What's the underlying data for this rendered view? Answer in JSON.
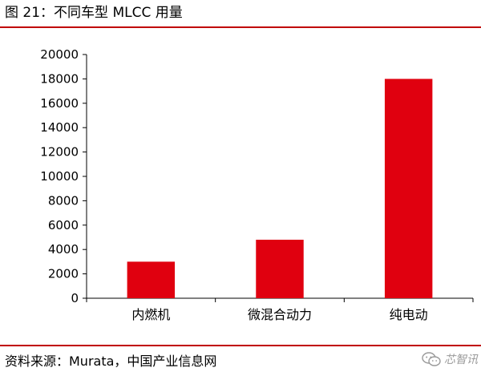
{
  "figure": {
    "title": "图 21：不同车型 MLCC 用量",
    "source": "资料来源：Murata，中国产业信息网",
    "watermark": "芯智讯",
    "rule_color": "#c00000"
  },
  "chart_data": {
    "type": "bar",
    "title": "",
    "xlabel": "",
    "ylabel": "",
    "categories": [
      "内燃机",
      "微混合动力",
      "纯电动"
    ],
    "values": [
      3000,
      4800,
      18000
    ],
    "ylim": [
      0,
      20000
    ],
    "yticks": [
      0,
      2000,
      4000,
      6000,
      8000,
      10000,
      12000,
      14000,
      16000,
      18000,
      20000
    ],
    "grid": false,
    "legend": "none",
    "bar_color": "#e0000f"
  }
}
